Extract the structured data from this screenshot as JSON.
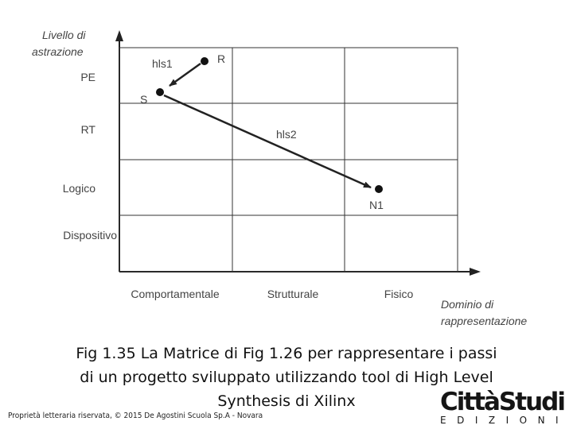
{
  "diagram": {
    "y_axis_title": [
      "Livello di",
      "astrazione"
    ],
    "x_axis_title": [
      "Dominio di",
      "rappresentazione"
    ],
    "rows": [
      "PE",
      "RT",
      "Logico",
      "Dispositivo"
    ],
    "columns": [
      "Comportamentale",
      "Strutturale",
      "Fisico"
    ],
    "points": [
      {
        "id": "R",
        "label": "R"
      },
      {
        "id": "S",
        "label": "S"
      },
      {
        "id": "N1",
        "label": "N1"
      }
    ],
    "arrows": [
      {
        "label": "hls1",
        "from": "R",
        "to": "S"
      },
      {
        "label": "hls2",
        "from": "S",
        "to": "N1"
      }
    ]
  },
  "caption": {
    "line1": "Fig 1.35 La Matrice di Fig 1.26 per rappresentare i passi",
    "line2": "di un progetto sviluppato utilizzando tool di High Level",
    "line3": "Synthesis di Xilinx"
  },
  "footer": "Proprietà letteraria riservata, © 2015 De Agostini Scuola Sp.A - Novara",
  "logo": {
    "top": "CittàStudi",
    "bottom": "EDIZIONI"
  }
}
